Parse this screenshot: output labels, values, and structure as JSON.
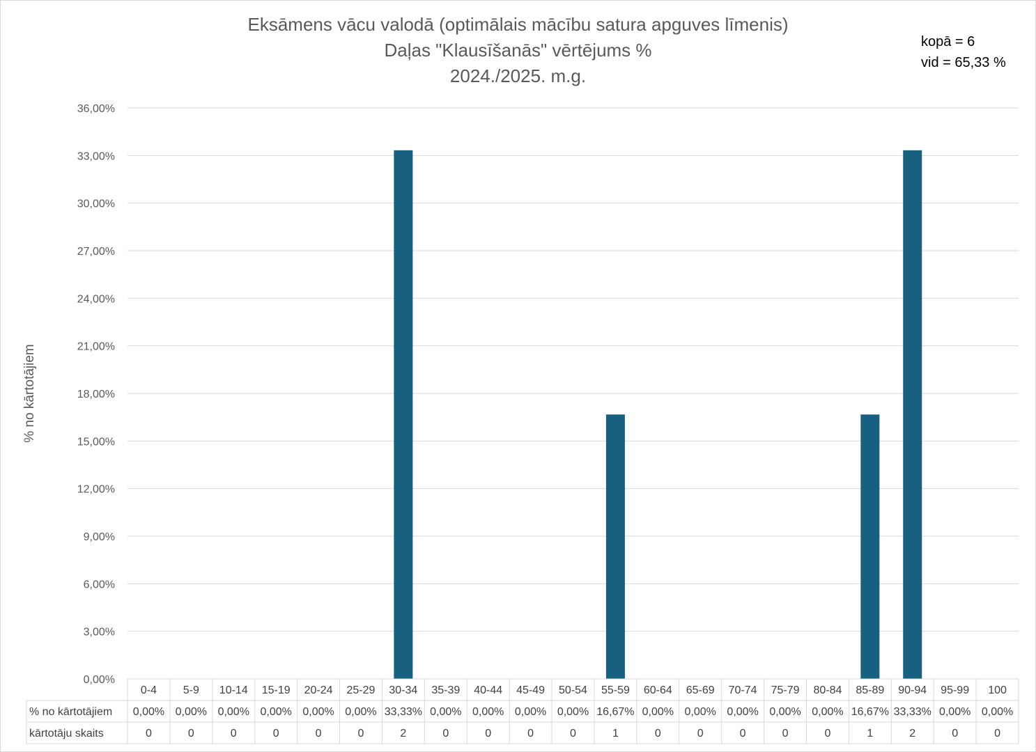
{
  "chart_data": {
    "type": "bar",
    "title": "Eksāmens vācu valodā (optimālais mācību satura apguves līmenis)",
    "subtitle": "Daļas \"Klausīšanās\" vērtējums %",
    "subtitle2": "2024./2025. m.g.",
    "info": {
      "total": "kopā = 6",
      "avg": "vid = 65,33 %"
    },
    "ylabel": "% no kārtotājiem",
    "xlabel": "",
    "ylim": [
      0,
      36
    ],
    "yticks": [
      0,
      3,
      6,
      9,
      12,
      15,
      18,
      21,
      24,
      27,
      30,
      33,
      36
    ],
    "ytick_labels": [
      "0,00%",
      "3,00%",
      "6,00%",
      "9,00%",
      "12,00%",
      "15,00%",
      "18,00%",
      "21,00%",
      "24,00%",
      "27,00%",
      "30,00%",
      "33,00%",
      "36,00%"
    ],
    "grid": true,
    "bar_color": "#17607f",
    "categories": [
      "0-4",
      "5-9",
      "10-14",
      "15-19",
      "20-24",
      "25-29",
      "30-34",
      "35-39",
      "40-44",
      "45-49",
      "50-54",
      "55-59",
      "60-64",
      "65-69",
      "70-74",
      "75-79",
      "80-84",
      "85-89",
      "90-94",
      "95-99",
      "100"
    ],
    "series": [
      {
        "name": "% no kārtotājiem",
        "values": [
          0,
          0,
          0,
          0,
          0,
          0,
          33.33,
          0,
          0,
          0,
          0,
          16.67,
          0,
          0,
          0,
          0,
          0,
          16.67,
          33.33,
          0,
          0
        ],
        "labels": [
          "0,00%",
          "0,00%",
          "0,00%",
          "0,00%",
          "0,00%",
          "0,00%",
          "33,33%",
          "0,00%",
          "0,00%",
          "0,00%",
          "0,00%",
          "16,67%",
          "0,00%",
          "0,00%",
          "0,00%",
          "0,00%",
          "0,00%",
          "16,67%",
          "33,33%",
          "0,00%",
          "0,00%"
        ]
      }
    ],
    "table": {
      "row_labels": [
        "% no kārtotājiem",
        "kārtotāju skaits"
      ],
      "counts": [
        "0",
        "0",
        "0",
        "0",
        "0",
        "0",
        "2",
        "0",
        "0",
        "0",
        "0",
        "1",
        "0",
        "0",
        "0",
        "0",
        "0",
        "1",
        "2",
        "0",
        "0"
      ]
    }
  }
}
